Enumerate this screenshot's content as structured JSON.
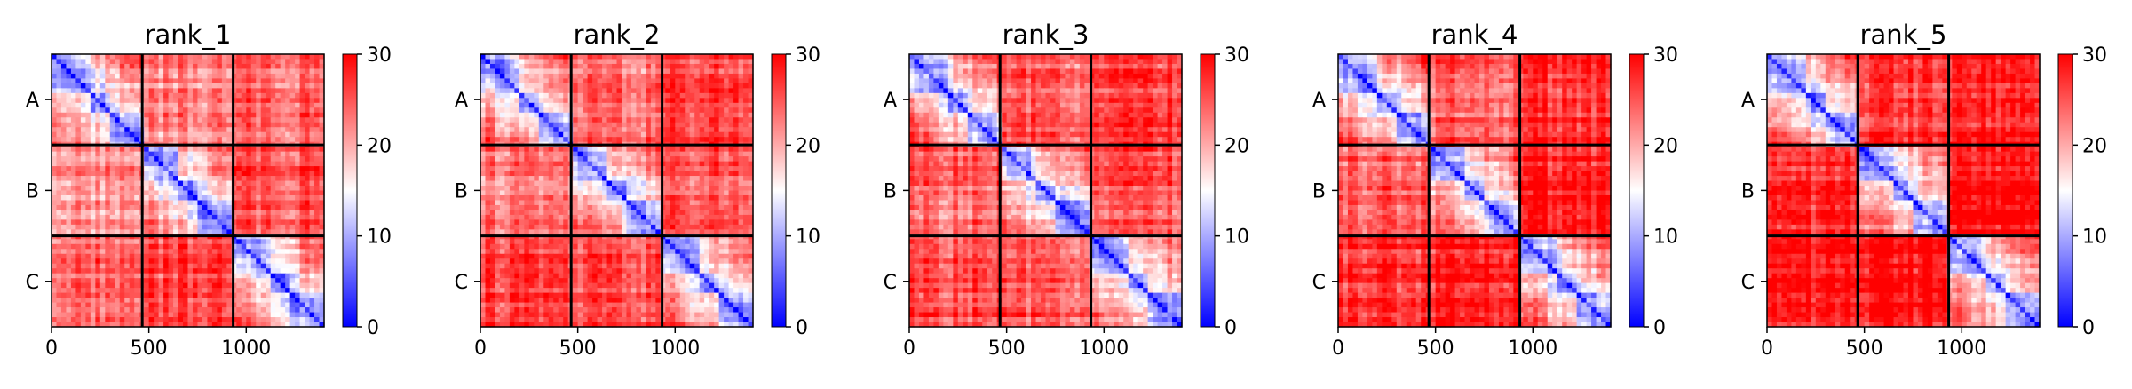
{
  "chart_data": [
    {
      "type": "heatmap",
      "title": "rank_1",
      "x_ticks": [
        0,
        500,
        1000
      ],
      "xlim": [
        0,
        1400
      ],
      "chain_labels": [
        "A",
        "B",
        "C"
      ],
      "chain_bounds": [
        0,
        466,
        933,
        1400
      ],
      "colorbar": {
        "min": 0,
        "max": 30,
        "ticks": [
          0,
          10,
          20,
          30
        ],
        "colormap": "bwr",
        "colors": [
          "#0000ff",
          "#ffffff",
          "#ff0000"
        ]
      },
      "inter_chain_level": [
        [
          2,
          22,
          24
        ],
        [
          22,
          2,
          26
        ],
        [
          24,
          26,
          2
        ]
      ]
    },
    {
      "type": "heatmap",
      "title": "rank_2",
      "x_ticks": [
        0,
        500,
        1000
      ],
      "xlim": [
        0,
        1400
      ],
      "chain_labels": [
        "A",
        "B",
        "C"
      ],
      "chain_bounds": [
        0,
        466,
        933,
        1400
      ],
      "colorbar": {
        "min": 0,
        "max": 30,
        "ticks": [
          0,
          10,
          20,
          30
        ],
        "colormap": "bwr",
        "colors": [
          "#0000ff",
          "#ffffff",
          "#ff0000"
        ]
      },
      "inter_chain_level": [
        [
          2,
          23,
          26
        ],
        [
          23,
          2,
          25
        ],
        [
          26,
          25,
          2
        ]
      ]
    },
    {
      "type": "heatmap",
      "title": "rank_3",
      "x_ticks": [
        0,
        500,
        1000
      ],
      "xlim": [
        0,
        1400
      ],
      "chain_labels": [
        "A",
        "B",
        "C"
      ],
      "chain_bounds": [
        0,
        466,
        933,
        1400
      ],
      "colorbar": {
        "min": 0,
        "max": 30,
        "ticks": [
          0,
          10,
          20,
          30
        ],
        "colormap": "bwr",
        "colors": [
          "#0000ff",
          "#ffffff",
          "#ff0000"
        ]
      },
      "inter_chain_level": [
        [
          2,
          24,
          26
        ],
        [
          24,
          2,
          25
        ],
        [
          26,
          25,
          2
        ]
      ]
    },
    {
      "type": "heatmap",
      "title": "rank_4",
      "x_ticks": [
        0,
        500,
        1000
      ],
      "xlim": [
        0,
        1400
      ],
      "chain_labels": [
        "A",
        "B",
        "C"
      ],
      "chain_bounds": [
        0,
        466,
        933,
        1400
      ],
      "colorbar": {
        "min": 0,
        "max": 30,
        "ticks": [
          0,
          10,
          20,
          30
        ],
        "colormap": "bwr",
        "colors": [
          "#0000ff",
          "#ffffff",
          "#ff0000"
        ]
      },
      "inter_chain_level": [
        [
          2,
          24,
          27
        ],
        [
          24,
          2,
          28
        ],
        [
          27,
          28,
          2
        ]
      ]
    },
    {
      "type": "heatmap",
      "title": "rank_5",
      "x_ticks": [
        0,
        500,
        1000
      ],
      "xlim": [
        0,
        1400
      ],
      "chain_labels": [
        "A",
        "B",
        "C"
      ],
      "chain_bounds": [
        0,
        466,
        933,
        1400
      ],
      "colorbar": {
        "min": 0,
        "max": 30,
        "ticks": [
          0,
          10,
          20,
          30
        ],
        "colormap": "bwr",
        "colors": [
          "#0000ff",
          "#ffffff",
          "#ff0000"
        ]
      },
      "inter_chain_level": [
        [
          2,
          27,
          28
        ],
        [
          27,
          2,
          29
        ],
        [
          28,
          29,
          2
        ]
      ]
    }
  ]
}
